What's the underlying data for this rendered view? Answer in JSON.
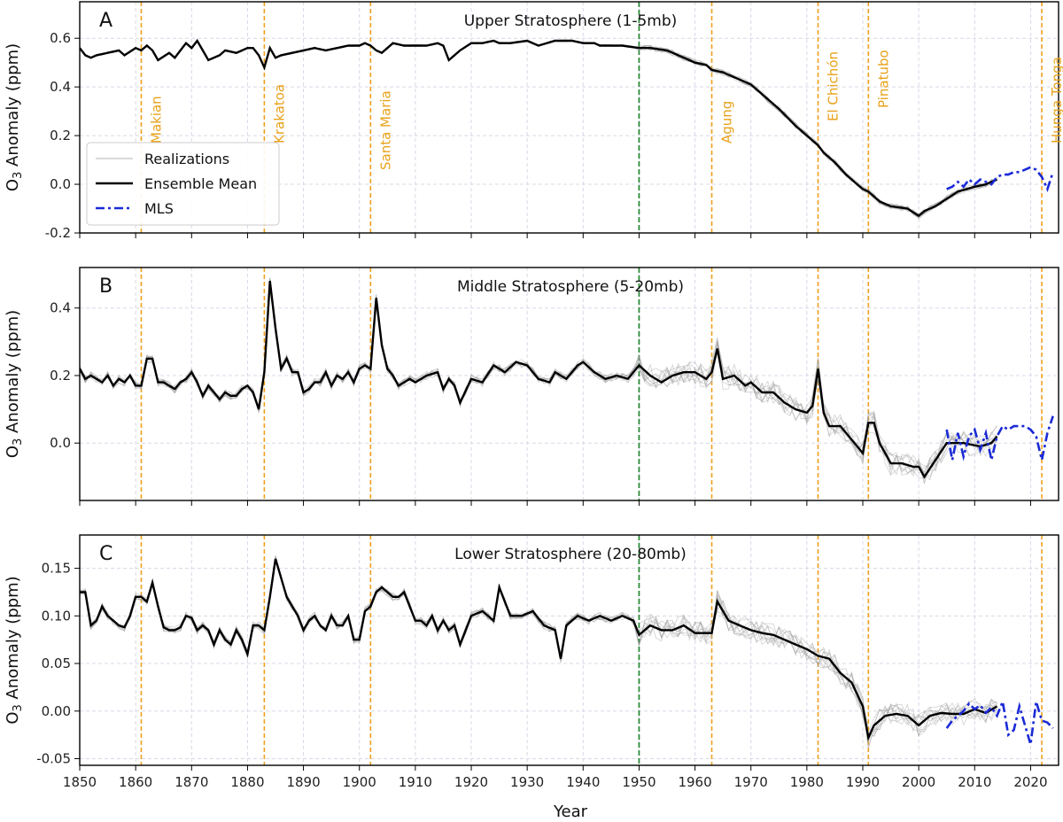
{
  "chart_data": {
    "type": "line",
    "xlabel": "Year",
    "xlim": [
      1850,
      2025
    ],
    "xticks": [
      1850,
      1860,
      1870,
      1880,
      1890,
      1900,
      1910,
      1920,
      1930,
      1940,
      1950,
      1960,
      1970,
      1980,
      1990,
      2000,
      2010,
      2020
    ],
    "grid": true,
    "legend": {
      "placement": "left",
      "entries": [
        "Realizations",
        "Ensemble Mean",
        "MLS"
      ]
    },
    "colors": {
      "ensemble_mean": "#000000",
      "realizations": "#9a9a9a",
      "mls": "#1a2ad6",
      "volcano_lines": "#f0a01e",
      "reference_line": "#2e8b3a",
      "grid": "#d8d8e8"
    },
    "reference_year": 1950,
    "volcanoes": [
      {
        "name": "Makian",
        "year": 1861
      },
      {
        "name": "Krakatoa",
        "year": 1883
      },
      {
        "name": "Santa Maria",
        "year": 1902
      },
      {
        "name": "Agung",
        "year": 1963
      },
      {
        "name": "El Chichón",
        "year": 1982
      },
      {
        "name": "Pinatubo",
        "year": 1991
      },
      {
        "name": "Hunga Tonga",
        "year": 2022
      }
    ],
    "panels": [
      {
        "letter": "A",
        "title": "Upper Stratosphere (1-5mb)",
        "ylabel_main": "O",
        "ylabel_sub": "3",
        "ylabel_rest": " Anomaly (ppm)",
        "ylim": [
          -0.2,
          0.75
        ],
        "yticks": [
          -0.2,
          0.0,
          0.2,
          0.4,
          0.6
        ],
        "ytick_labels": [
          "-0.2",
          "0.0",
          "0.2",
          "0.4",
          "0.6"
        ],
        "show_volcano_labels": true,
        "show_legend": true,
        "spread": 0.012,
        "series": [
          {
            "name": "Ensemble Mean",
            "x": [
              1850,
              1851,
              1852,
              1853,
              1855,
              1857,
              1858,
              1860,
              1861,
              1862,
              1863,
              1864,
              1866,
              1867,
              1868,
              1869,
              1870,
              1871,
              1872,
              1873,
              1875,
              1876,
              1878,
              1880,
              1881,
              1882,
              1883,
              1884,
              1885,
              1886,
              1888,
              1890,
              1892,
              1894,
              1896,
              1898,
              1900,
              1901,
              1902,
              1903,
              1904,
              1905,
              1906,
              1908,
              1910,
              1912,
              1914,
              1915,
              1916,
              1918,
              1920,
              1922,
              1924,
              1925,
              1927,
              1930,
              1932,
              1935,
              1938,
              1940,
              1942,
              1943,
              1945,
              1947,
              1950,
              1952,
              1955,
              1957,
              1960,
              1962,
              1963,
              1965,
              1967,
              1970,
              1972,
              1975,
              1978,
              1980,
              1982,
              1983,
              1985,
              1987,
              1989,
              1990,
              1991,
              1993,
              1995,
              1998,
              2000,
              2001,
              2003,
              2005,
              2007,
              2010,
              2012,
              2014
            ],
            "values": [
              0.56,
              0.53,
              0.52,
              0.53,
              0.54,
              0.55,
              0.53,
              0.56,
              0.55,
              0.57,
              0.55,
              0.51,
              0.54,
              0.52,
              0.55,
              0.58,
              0.56,
              0.59,
              0.55,
              0.51,
              0.53,
              0.55,
              0.54,
              0.56,
              0.56,
              0.53,
              0.48,
              0.56,
              0.52,
              0.53,
              0.54,
              0.55,
              0.56,
              0.55,
              0.56,
              0.57,
              0.57,
              0.58,
              0.57,
              0.55,
              0.54,
              0.56,
              0.58,
              0.57,
              0.57,
              0.57,
              0.58,
              0.57,
              0.51,
              0.55,
              0.58,
              0.58,
              0.59,
              0.58,
              0.58,
              0.59,
              0.57,
              0.59,
              0.59,
              0.58,
              0.58,
              0.57,
              0.57,
              0.57,
              0.56,
              0.56,
              0.55,
              0.53,
              0.5,
              0.49,
              0.47,
              0.46,
              0.44,
              0.41,
              0.37,
              0.31,
              0.24,
              0.2,
              0.16,
              0.13,
              0.09,
              0.04,
              0.0,
              -0.02,
              -0.03,
              -0.07,
              -0.09,
              -0.1,
              -0.13,
              -0.11,
              -0.09,
              -0.06,
              -0.03,
              -0.01,
              0.0,
              0.02
            ]
          },
          {
            "name": "MLS",
            "x": [
              2005,
              2006,
              2007,
              2008,
              2009,
              2010,
              2011,
              2012,
              2013,
              2014,
              2015,
              2016,
              2017,
              2018,
              2019,
              2020,
              2021,
              2022,
              2023,
              2024
            ],
            "values": [
              -0.02,
              -0.01,
              0.01,
              -0.01,
              0.02,
              0.0,
              0.02,
              0.01,
              0.0,
              0.03,
              0.04,
              0.04,
              0.05,
              0.05,
              0.06,
              0.07,
              0.06,
              0.03,
              -0.02,
              0.05
            ]
          }
        ]
      },
      {
        "letter": "B",
        "title": "Middle Stratosphere (5-20mb)",
        "ylabel_main": "O",
        "ylabel_sub": "3",
        "ylabel_rest": " Anomaly (ppm)",
        "ylim": [
          -0.17,
          0.52
        ],
        "yticks": [
          0.0,
          0.2,
          0.4
        ],
        "ytick_labels": [
          "0.0",
          "0.2",
          "0.4"
        ],
        "show_volcano_labels": false,
        "show_legend": false,
        "spread": 0.035,
        "series": [
          {
            "name": "Ensemble Mean",
            "x": [
              1850,
              1851,
              1852,
              1853,
              1854,
              1855,
              1856,
              1857,
              1858,
              1859,
              1860,
              1861,
              1862,
              1863,
              1864,
              1865,
              1866,
              1867,
              1868,
              1869,
              1870,
              1871,
              1872,
              1873,
              1874,
              1875,
              1876,
              1877,
              1878,
              1879,
              1880,
              1881,
              1882,
              1883,
              1884,
              1885,
              1886,
              1887,
              1888,
              1889,
              1890,
              1891,
              1892,
              1893,
              1894,
              1895,
              1896,
              1897,
              1898,
              1899,
              1900,
              1901,
              1902,
              1903,
              1904,
              1905,
              1906,
              1907,
              1908,
              1909,
              1910,
              1912,
              1914,
              1915,
              1916,
              1917,
              1918,
              1920,
              1922,
              1924,
              1925,
              1926,
              1928,
              1930,
              1932,
              1934,
              1935,
              1937,
              1939,
              1940,
              1942,
              1944,
              1946,
              1948,
              1950,
              1952,
              1954,
              1956,
              1958,
              1960,
              1962,
              1963,
              1964,
              1965,
              1967,
              1969,
              1970,
              1972,
              1974,
              1976,
              1978,
              1980,
              1981,
              1982,
              1983,
              1984,
              1986,
              1988,
              1990,
              1991,
              1992,
              1993,
              1995,
              1997,
              1999,
              2000,
              2001,
              2003,
              2005,
              2008,
              2011,
              2013,
              2014
            ],
            "values": [
              0.22,
              0.19,
              0.2,
              0.19,
              0.18,
              0.2,
              0.17,
              0.19,
              0.18,
              0.2,
              0.17,
              0.17,
              0.25,
              0.25,
              0.18,
              0.18,
              0.17,
              0.16,
              0.18,
              0.19,
              0.21,
              0.18,
              0.14,
              0.17,
              0.15,
              0.13,
              0.15,
              0.14,
              0.14,
              0.16,
              0.17,
              0.15,
              0.1,
              0.21,
              0.48,
              0.34,
              0.22,
              0.25,
              0.21,
              0.21,
              0.15,
              0.16,
              0.18,
              0.18,
              0.21,
              0.17,
              0.2,
              0.19,
              0.21,
              0.18,
              0.22,
              0.23,
              0.22,
              0.43,
              0.29,
              0.22,
              0.2,
              0.17,
              0.18,
              0.19,
              0.18,
              0.2,
              0.21,
              0.16,
              0.19,
              0.17,
              0.12,
              0.19,
              0.18,
              0.23,
              0.22,
              0.21,
              0.24,
              0.23,
              0.19,
              0.18,
              0.21,
              0.19,
              0.23,
              0.24,
              0.21,
              0.19,
              0.2,
              0.19,
              0.23,
              0.2,
              0.18,
              0.2,
              0.21,
              0.21,
              0.19,
              0.21,
              0.28,
              0.19,
              0.2,
              0.17,
              0.18,
              0.15,
              0.15,
              0.12,
              0.1,
              0.09,
              0.11,
              0.22,
              0.09,
              0.05,
              0.05,
              0.01,
              -0.03,
              0.06,
              0.06,
              0.0,
              -0.06,
              -0.06,
              -0.07,
              -0.07,
              -0.1,
              -0.05,
              0.0,
              0.0,
              -0.01,
              0.0,
              0.02
            ]
          },
          {
            "name": "MLS",
            "x": [
              2005,
              2006,
              2007,
              2008,
              2009,
              2010,
              2011,
              2012,
              2013,
              2014,
              2015,
              2016,
              2017,
              2018,
              2019,
              2020,
              2021,
              2022,
              2023,
              2024
            ],
            "values": [
              0.04,
              -0.05,
              0.03,
              -0.04,
              0.02,
              0.04,
              -0.02,
              0.03,
              -0.05,
              0.02,
              0.05,
              0.04,
              0.05,
              0.05,
              0.05,
              0.04,
              0.02,
              -0.05,
              0.03,
              0.08
            ]
          }
        ]
      },
      {
        "letter": "C",
        "title": "Lower Stratosphere (20-80mb)",
        "ylabel_main": "O",
        "ylabel_sub": "3",
        "ylabel_rest": " Anomaly (ppm)",
        "ylim": [
          -0.057,
          0.185
        ],
        "yticks": [
          -0.05,
          0.0,
          0.05,
          0.1,
          0.15
        ],
        "ytick_labels": [
          "-0.05",
          "0.00",
          "0.05",
          "0.10",
          "0.15"
        ],
        "show_volcano_labels": false,
        "show_legend": false,
        "spread": 0.012,
        "series": [
          {
            "name": "Ensemble Mean",
            "x": [
              1850,
              1851,
              1852,
              1853,
              1854,
              1855,
              1856,
              1857,
              1858,
              1859,
              1860,
              1861,
              1862,
              1863,
              1864,
              1865,
              1866,
              1867,
              1868,
              1869,
              1870,
              1871,
              1872,
              1873,
              1874,
              1875,
              1876,
              1877,
              1878,
              1879,
              1880,
              1881,
              1882,
              1883,
              1884,
              1885,
              1886,
              1887,
              1888,
              1889,
              1890,
              1891,
              1892,
              1893,
              1894,
              1895,
              1896,
              1897,
              1898,
              1899,
              1900,
              1901,
              1902,
              1903,
              1904,
              1905,
              1906,
              1907,
              1908,
              1909,
              1910,
              1911,
              1912,
              1913,
              1914,
              1915,
              1916,
              1917,
              1918,
              1920,
              1922,
              1924,
              1925,
              1927,
              1929,
              1931,
              1933,
              1935,
              1936,
              1937,
              1939,
              1941,
              1943,
              1945,
              1947,
              1949,
              1950,
              1952,
              1954,
              1956,
              1958,
              1960,
              1962,
              1963,
              1964,
              1966,
              1968,
              1970,
              1972,
              1974,
              1976,
              1978,
              1980,
              1982,
              1984,
              1986,
              1988,
              1990,
              1991,
              1992,
              1994,
              1996,
              1998,
              2000,
              2002,
              2004,
              2006,
              2008,
              2010,
              2012,
              2014
            ],
            "values": [
              0.125,
              0.125,
              0.09,
              0.095,
              0.11,
              0.1,
              0.095,
              0.09,
              0.088,
              0.1,
              0.12,
              0.12,
              0.115,
              0.135,
              0.11,
              0.088,
              0.085,
              0.085,
              0.088,
              0.1,
              0.098,
              0.085,
              0.09,
              0.085,
              0.07,
              0.085,
              0.075,
              0.07,
              0.085,
              0.075,
              0.06,
              0.09,
              0.09,
              0.085,
              0.12,
              0.16,
              0.14,
              0.12,
              0.11,
              0.1,
              0.085,
              0.095,
              0.1,
              0.09,
              0.085,
              0.1,
              0.09,
              0.09,
              0.1,
              0.075,
              0.075,
              0.105,
              0.11,
              0.125,
              0.13,
              0.125,
              0.12,
              0.12,
              0.125,
              0.11,
              0.095,
              0.095,
              0.09,
              0.1,
              0.085,
              0.095,
              0.085,
              0.09,
              0.07,
              0.1,
              0.105,
              0.095,
              0.13,
              0.1,
              0.1,
              0.105,
              0.09,
              0.085,
              0.055,
              0.09,
              0.1,
              0.095,
              0.1,
              0.095,
              0.1,
              0.095,
              0.08,
              0.09,
              0.085,
              0.085,
              0.09,
              0.082,
              0.082,
              0.082,
              0.115,
              0.095,
              0.09,
              0.085,
              0.082,
              0.08,
              0.075,
              0.07,
              0.065,
              0.058,
              0.055,
              0.04,
              0.03,
              0.005,
              -0.028,
              -0.015,
              -0.005,
              -0.003,
              -0.005,
              -0.015,
              -0.005,
              -0.002,
              -0.003,
              -0.003,
              0.002,
              -0.002,
              0.005
            ]
          },
          {
            "name": "MLS",
            "x": [
              2005,
              2006,
              2007,
              2008,
              2009,
              2010,
              2011,
              2012,
              2013,
              2014,
              2015,
              2016,
              2017,
              2018,
              2019,
              2020,
              2021,
              2022,
              2023,
              2024
            ],
            "values": [
              -0.018,
              -0.01,
              -0.005,
              0.0,
              0.008,
              0.002,
              0.006,
              -0.002,
              0.004,
              -0.005,
              0.01,
              -0.025,
              -0.02,
              0.005,
              -0.015,
              -0.035,
              0.01,
              -0.01,
              -0.012,
              -0.018
            ]
          }
        ]
      }
    ]
  }
}
